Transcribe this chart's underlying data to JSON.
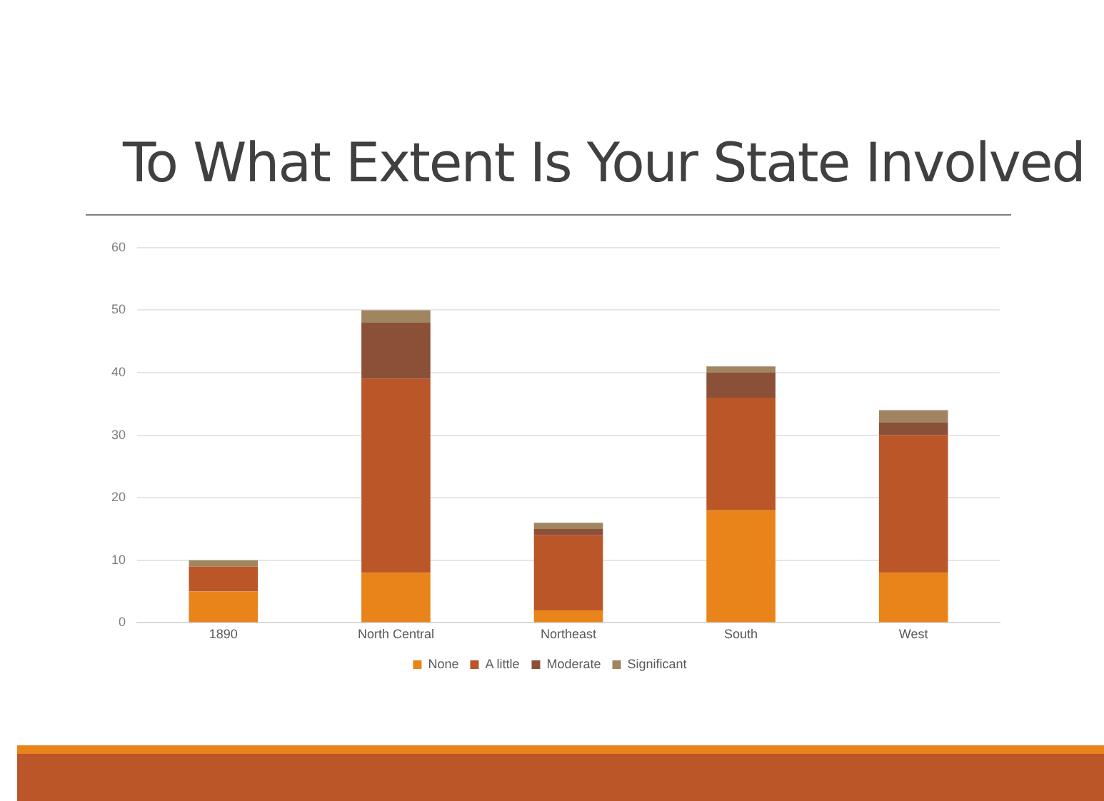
{
  "chart_data": {
    "type": "bar",
    "title": "To What Extent Is Your State Involved",
    "stacked": true,
    "categories": [
      "1890",
      "North Central",
      "Northeast",
      "South",
      "West"
    ],
    "series": [
      {
        "name": "None",
        "color": "#e8841a",
        "values": [
          5,
          8,
          2,
          18,
          8
        ]
      },
      {
        "name": "A little",
        "color": "#bb5628",
        "values": [
          4,
          31,
          12,
          18,
          22
        ]
      },
      {
        "name": "Moderate",
        "color": "#8b5138",
        "values": [
          0,
          9,
          1,
          4,
          2
        ]
      },
      {
        "name": "Significant",
        "color": "#a08560",
        "values": [
          1,
          2,
          1,
          1,
          2
        ]
      }
    ],
    "ylim": [
      0,
      60
    ],
    "yticks": [
      0,
      10,
      20,
      30,
      40,
      50,
      60
    ],
    "grid": "y",
    "legend": "bottom"
  }
}
